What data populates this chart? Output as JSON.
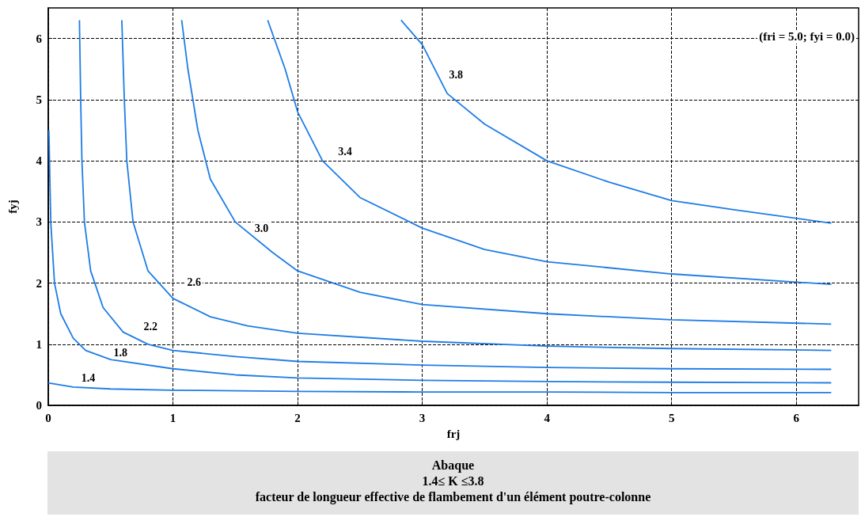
{
  "chart_data": {
    "type": "line",
    "title": "Abaque",
    "subtitle": "1.4≤ K ≤3.8",
    "xlabel": "frj",
    "ylabel": "fyj",
    "xlim": [
      0,
      6.5
    ],
    "xticks": [
      0,
      1,
      2,
      3,
      4,
      5,
      6
    ],
    "ylim": [
      0,
      6.5
    ],
    "yticks": [
      0,
      1,
      2,
      3,
      4,
      5,
      6
    ],
    "grid": true,
    "marker": "none",
    "line_style": "solid",
    "series": [
      {
        "color": "#1e7de6",
        "x": [
          0,
          0.2,
          0.5,
          1,
          2,
          3,
          4,
          5,
          6.28
        ],
        "values": [
          0.37,
          0.3,
          0.27,
          0.25,
          0.23,
          0.22,
          0.22,
          0.21,
          0.21
        ]
      },
      {
        "color": "#1e7de6",
        "x": [
          0.005,
          0.02,
          0.05,
          0.1,
          0.2,
          0.3,
          0.5,
          1,
          1.5,
          2,
          3,
          4,
          5,
          6.28
        ],
        "values": [
          4.5,
          3.0,
          2.0,
          1.5,
          1.1,
          0.9,
          0.75,
          0.6,
          0.5,
          0.45,
          0.41,
          0.39,
          0.38,
          0.37
        ]
      },
      {
        "color": "#1e7de6",
        "x": [
          0.25,
          0.26,
          0.27,
          0.29,
          0.34,
          0.44,
          0.6,
          0.8,
          1,
          1.5,
          2,
          3,
          4,
          5,
          6.28
        ],
        "values": [
          6.3,
          5,
          4,
          3,
          2.2,
          1.6,
          1.2,
          1.0,
          0.9,
          0.8,
          0.72,
          0.66,
          0.62,
          0.6,
          0.59
        ]
      },
      {
        "color": "#1e7de6",
        "x": [
          0.59,
          0.61,
          0.63,
          0.68,
          0.8,
          1,
          1.3,
          1.6,
          2,
          3,
          4,
          5,
          6.28
        ],
        "values": [
          6.3,
          5,
          4,
          3,
          2.2,
          1.75,
          1.45,
          1.3,
          1.18,
          1.05,
          0.97,
          0.93,
          0.9
        ]
      },
      {
        "color": "#1e7de6",
        "x": [
          1.07,
          1.12,
          1.2,
          1.3,
          1.5,
          1.8,
          2,
          2.5,
          3,
          4,
          5,
          6.28
        ],
        "values": [
          6.3,
          5.5,
          4.5,
          3.7,
          3.0,
          2.5,
          2.2,
          1.85,
          1.65,
          1.5,
          1.4,
          1.33
        ]
      },
      {
        "color": "#1e7de6",
        "x": [
          1.76,
          1.9,
          2,
          2.2,
          2.5,
          3,
          3.5,
          4,
          5,
          6.28
        ],
        "values": [
          6.3,
          5.5,
          4.8,
          4.0,
          3.4,
          2.9,
          2.55,
          2.35,
          2.15,
          1.98
        ]
      },
      {
        "color": "#1e7de6",
        "x": [
          2.83,
          3,
          3.2,
          3.5,
          4,
          4.5,
          5,
          5.5,
          6.28
        ],
        "values": [
          6.3,
          5.9,
          5.1,
          4.6,
          4.0,
          3.65,
          3.35,
          3.2,
          2.98
        ]
      }
    ],
    "annotations": [
      {
        "text": "1.4",
        "x": 0.32,
        "y": 0.45
      },
      {
        "text": "1.8",
        "x": 0.58,
        "y": 0.86
      },
      {
        "text": "2.2",
        "x": 0.82,
        "y": 1.29
      },
      {
        "text": "2.6",
        "x": 1.17,
        "y": 2.02
      },
      {
        "text": "3.0",
        "x": 1.71,
        "y": 2.9
      },
      {
        "text": "3.4",
        "x": 2.38,
        "y": 4.15
      },
      {
        "text": "3.8",
        "x": 3.27,
        "y": 5.4
      },
      "(fri = 5.0; fyi = 0.0)",
      "facteur de longueur effective de flambement d'un élément poutre-colonne"
    ]
  }
}
